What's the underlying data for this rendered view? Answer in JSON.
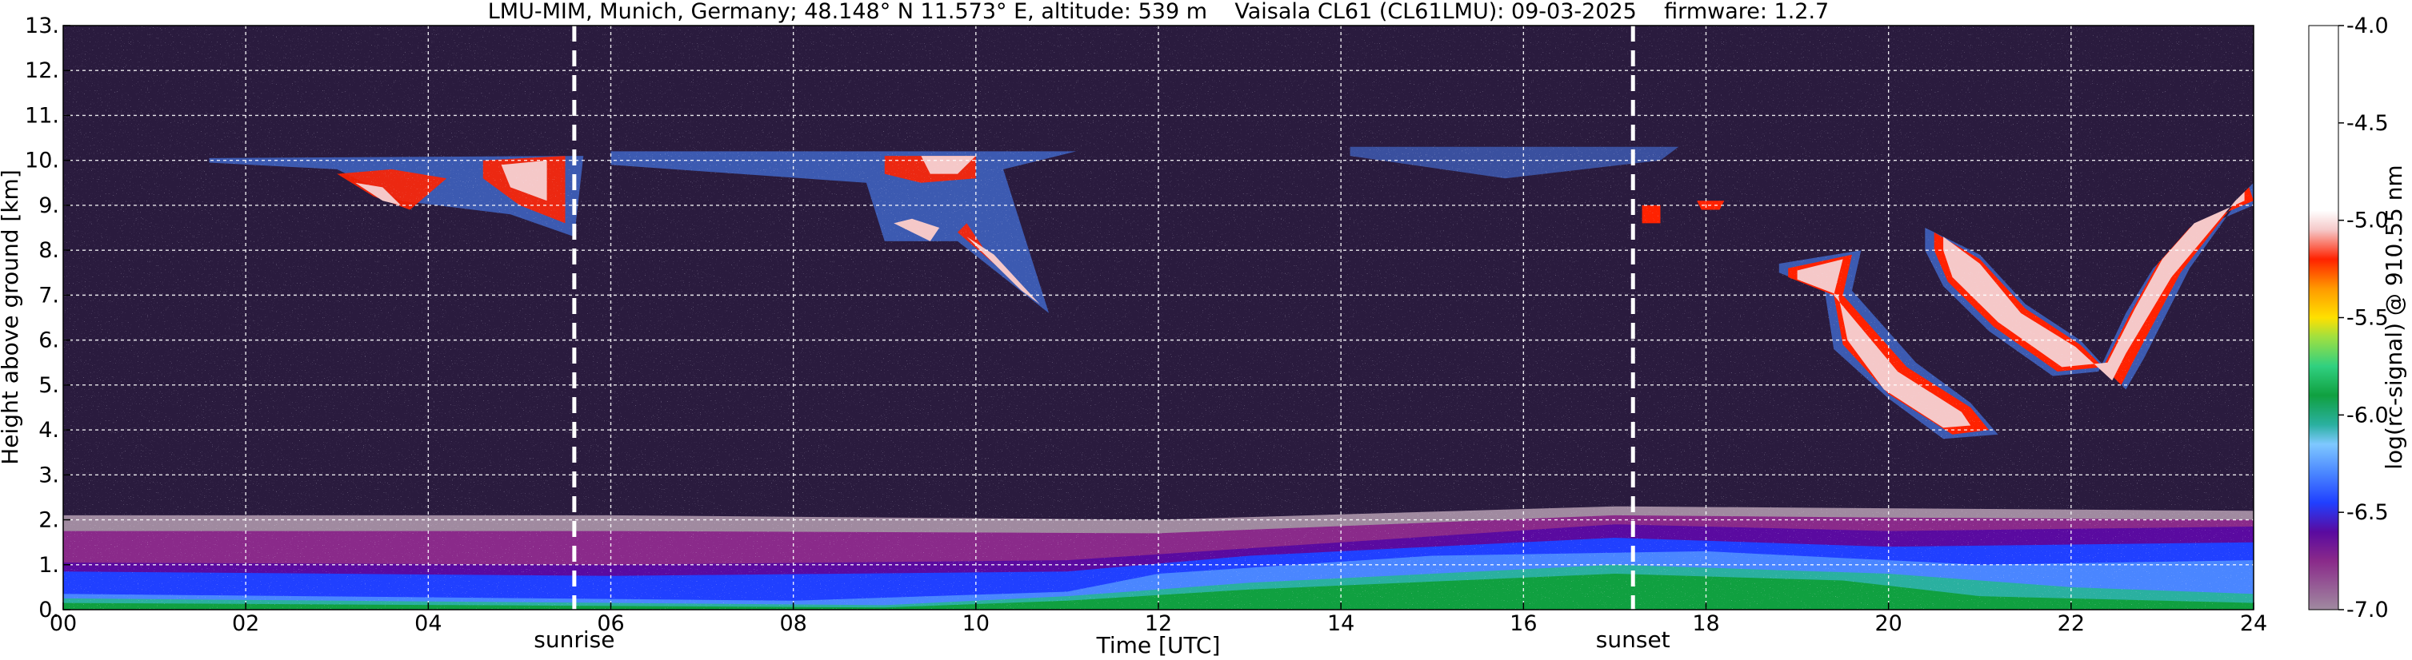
{
  "chart_data": {
    "type": "heatmap",
    "title": "LMU-MIM, Munich, Germany; 48.148° N 11.573° E, altitude: 539 m    Vaisala CL61 (CL61LMU): 09-03-2025    firmware: 1.2.7",
    "xlabel": "Time [UTC]",
    "ylabel": "Height above ground [km]",
    "colorbar_label": "log(rc-signal) @ 910.55 nm",
    "xlim": [
      0,
      24
    ],
    "ylim": [
      0,
      13
    ],
    "clim": [
      -7.0,
      -4.0
    ],
    "grid": true,
    "x_ticks": [
      {
        "value": 0,
        "label": "00"
      },
      {
        "value": 2,
        "label": "02"
      },
      {
        "value": 4,
        "label": "04"
      },
      {
        "value": 6,
        "label": "06"
      },
      {
        "value": 8,
        "label": "08"
      },
      {
        "value": 10,
        "label": "10"
      },
      {
        "value": 12,
        "label": "12"
      },
      {
        "value": 14,
        "label": "14"
      },
      {
        "value": 16,
        "label": "16"
      },
      {
        "value": 18,
        "label": "18"
      },
      {
        "value": 20,
        "label": "20"
      },
      {
        "value": 22,
        "label": "22"
      },
      {
        "value": 24,
        "label": "24"
      }
    ],
    "y_ticks": [
      {
        "value": 0,
        "label": "0."
      },
      {
        "value": 1,
        "label": "1."
      },
      {
        "value": 2,
        "label": "2."
      },
      {
        "value": 3,
        "label": "3."
      },
      {
        "value": 4,
        "label": "4."
      },
      {
        "value": 5,
        "label": "5."
      },
      {
        "value": 6,
        "label": "6."
      },
      {
        "value": 7,
        "label": "7."
      },
      {
        "value": 8,
        "label": "8."
      },
      {
        "value": 9,
        "label": "9."
      },
      {
        "value": 10,
        "label": "10."
      },
      {
        "value": 11,
        "label": "11."
      },
      {
        "value": 12,
        "label": "12."
      },
      {
        "value": 13,
        "label": "13."
      }
    ],
    "colorbar_ticks": [
      {
        "value": -4.0,
        "label": "-4.0"
      },
      {
        "value": -4.5,
        "label": "-4.5"
      },
      {
        "value": -5.0,
        "label": "-5.0"
      },
      {
        "value": -5.5,
        "label": "-5.5"
      },
      {
        "value": -6.0,
        "label": "-6.0"
      },
      {
        "value": -6.5,
        "label": "-6.5"
      },
      {
        "value": -7.0,
        "label": "-7.0"
      }
    ],
    "colorscale": [
      {
        "value": -7.0,
        "color": "#a08aa0"
      },
      {
        "value": -6.75,
        "color": "#8a2a8a"
      },
      {
        "value": -6.6,
        "color": "#5a0aa0"
      },
      {
        "value": -6.45,
        "color": "#2040ff"
      },
      {
        "value": -6.3,
        "color": "#4a86ff"
      },
      {
        "value": -6.15,
        "color": "#7fc8ff"
      },
      {
        "value": -6.05,
        "color": "#2ab0a0"
      },
      {
        "value": -5.9,
        "color": "#10a040"
      },
      {
        "value": -5.75,
        "color": "#30d080"
      },
      {
        "value": -5.6,
        "color": "#a0e040"
      },
      {
        "value": -5.5,
        "color": "#ffe000"
      },
      {
        "value": -5.35,
        "color": "#ff9900"
      },
      {
        "value": -5.2,
        "color": "#ff2200"
      },
      {
        "value": -5.05,
        "color": "#f5c8c8"
      },
      {
        "value": -4.95,
        "color": "#ffffff"
      },
      {
        "value": -4.0,
        "color": "#ffffff"
      }
    ],
    "events": [
      {
        "name": "sunrise",
        "time": 5.6
      },
      {
        "name": "sunset",
        "time": 17.2
      }
    ]
  }
}
